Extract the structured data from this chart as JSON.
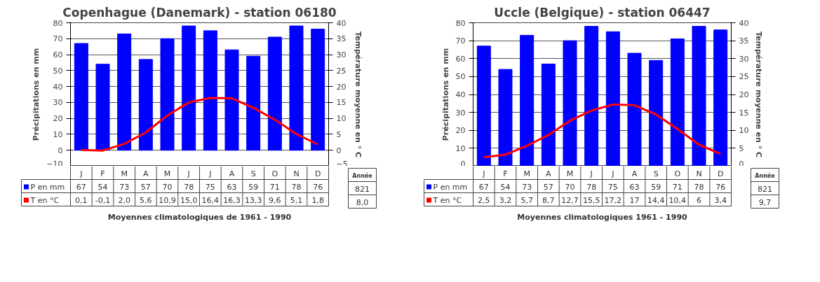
{
  "chart_data": [
    {
      "type": "bar",
      "title": "Copenhague (Danemark) - station 06180",
      "xlabel": "Moyennes climatologiques de 1961 - 1990",
      "ylabel": "Précipitations en mm",
      "y2label": "Température moyenne en ° C",
      "categories": [
        "J",
        "F",
        "M",
        "A",
        "M",
        "J",
        "J",
        "A",
        "S",
        "O",
        "N",
        "D"
      ],
      "ylim": [
        -10,
        80
      ],
      "yticks": [
        -10,
        0,
        10,
        20,
        30,
        40,
        50,
        60,
        70,
        80
      ],
      "y2lim": [
        -5,
        40
      ],
      "y2ticks": [
        -5,
        0,
        5,
        10,
        15,
        20,
        25,
        30,
        35,
        40
      ],
      "grid": "y",
      "legend": "bottom left",
      "line_style": "solid",
      "marker": "none",
      "series": [
        {
          "name": "P en mm",
          "color": "#0000ff",
          "values": [
            67,
            54,
            73,
            57,
            70,
            78,
            75,
            63,
            59,
            71,
            78,
            76
          ],
          "value_labels": [
            "67",
            "54",
            "73",
            "57",
            "70",
            "78",
            "75",
            "63",
            "59",
            "71",
            "78",
            "76"
          ]
        },
        {
          "name": "T en °C",
          "type": "line",
          "axis": "y2",
          "color": "#ff0000",
          "values": [
            0.1,
            -0.1,
            2.0,
            5.6,
            10.9,
            15.0,
            16.4,
            16.3,
            13.3,
            9.6,
            5.1,
            1.8
          ],
          "value_labels": [
            "0,1",
            "-0,1",
            "2,0",
            "5,6",
            "10,9",
            "15,0",
            "16,4",
            "16,3",
            "13,3",
            "9,6",
            "5,1",
            "1,8"
          ]
        }
      ],
      "annotations": [
        "Année",
        "821",
        "8,0"
      ]
    },
    {
      "type": "bar",
      "title": "Uccle (Belgique) - station 06447",
      "xlabel": "Moyennes climatologiques 1961 - 1990",
      "ylabel": "Précipitations en mm",
      "y2label": "Température moyenne en ° C",
      "categories": [
        "J",
        "F",
        "M",
        "A",
        "M",
        "J",
        "J",
        "A",
        "S",
        "O",
        "N",
        "D"
      ],
      "ylim": [
        0,
        80
      ],
      "yticks": [
        0,
        10,
        20,
        30,
        40,
        50,
        60,
        70,
        80
      ],
      "y2lim": [
        0,
        40
      ],
      "y2ticks": [
        0,
        5,
        10,
        15,
        20,
        25,
        30,
        35,
        40
      ],
      "grid": "y",
      "legend": "bottom left",
      "line_style": "solid",
      "marker": "none",
      "series": [
        {
          "name": "P en mm",
          "color": "#0000ff",
          "values": [
            67,
            54,
            73,
            57,
            70,
            78,
            75,
            63,
            59,
            71,
            78,
            76
          ],
          "value_labels": [
            "67",
            "54",
            "73",
            "57",
            "70",
            "78",
            "75",
            "63",
            "59",
            "71",
            "78",
            "76"
          ]
        },
        {
          "name": "T en °C",
          "type": "line",
          "axis": "y2",
          "color": "#ff0000",
          "values": [
            2.5,
            3.2,
            5.7,
            8.7,
            12.7,
            15.5,
            17.2,
            17,
            14.4,
            10.4,
            6,
            3.4
          ],
          "value_labels": [
            "2,5",
            "3,2",
            "5,7",
            "8,7",
            "12,7",
            "15,5",
            "17,2",
            "17",
            "14,4",
            "10,4",
            "6",
            "3,4"
          ]
        }
      ],
      "annotations": [
        "Année",
        "821",
        "9,7"
      ]
    }
  ]
}
